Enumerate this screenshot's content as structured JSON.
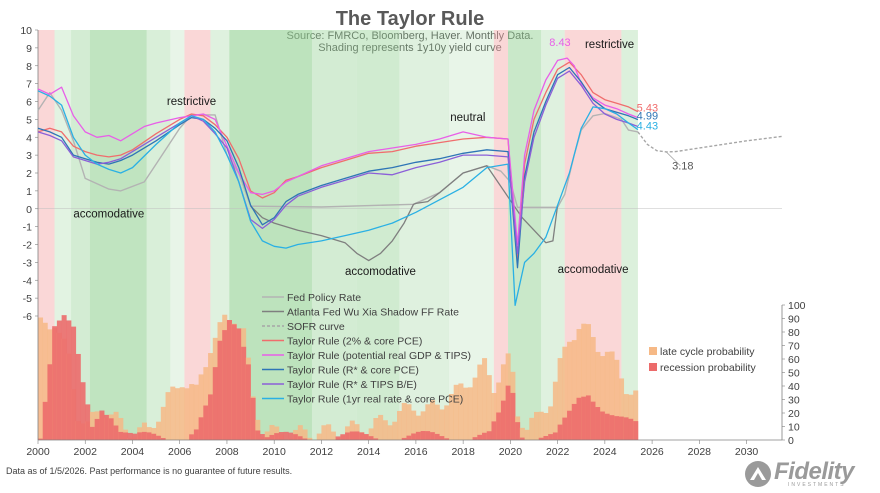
{
  "header": {
    "title": "The Taylor Rule",
    "subtitle_1": "Source: FMRCo, Bloomberg, Haver.  Monthly Data.",
    "subtitle_2": "Shading represents 1y10y yield curve"
  },
  "footer": {
    "note": "Data as of 1/5/2026. Past performance is no guarantee of future results."
  },
  "logo": {
    "text": "Fidelity",
    "sub": "INVESTMENTS"
  },
  "colors": {
    "fed": "#b3b3b3",
    "wuxia": "#7f7f7f",
    "sofr": "#a6a6a6",
    "tr_core": "#f06d6d",
    "tr_gdp": "#e85fe8",
    "tr_rstar": "#2e75b6",
    "tr_tips": "#8b5fd8",
    "tr_real": "#2ab0e4",
    "late_cycle": "#f6b986",
    "recession": "#ec6b6b",
    "green_shade": "#8fcf8f",
    "red_shade": "#f4a6a6"
  },
  "chart_data": {
    "type": "line",
    "x_axis": {
      "ticks": [
        "2000",
        "2002",
        "2004",
        "2006",
        "2008",
        "2010",
        "2012",
        "2014",
        "2016",
        "2018",
        "2020",
        "2022",
        "2024",
        "2026",
        "2028",
        "2030"
      ],
      "range": [
        2000,
        2031.5
      ]
    },
    "y_left": {
      "ticks": [
        "10",
        "9",
        "8",
        "7",
        "6",
        "5",
        "4",
        "3",
        "2",
        "1",
        "0",
        "-1",
        "-2",
        "-3",
        "-4",
        "-5",
        "-6"
      ],
      "range": [
        -6,
        10
      ]
    },
    "y_right": {
      "ticks": [
        "100",
        "90",
        "80",
        "70",
        "60",
        "50",
        "40",
        "30",
        "20",
        "10",
        "0"
      ],
      "range": [
        0,
        100
      ]
    },
    "grid": false,
    "legend_position": "center",
    "series": [
      {
        "name": "Fed Policy Rate",
        "key": "fed",
        "x": [
          2000,
          2000.5,
          2001,
          2001.5,
          2002,
          2003,
          2003.5,
          2004.5,
          2005,
          2006,
          2006.5,
          2007.5,
          2008,
          2008.5,
          2009,
          2012,
          2015.9,
          2017,
          2018,
          2019,
          2019.6,
          2020,
          2020.3,
          2022,
          2022.3,
          2022.7,
          2023,
          2023.5,
          2024,
          2024.7,
          2025,
          2025.4
        ],
        "y": [
          5.5,
          6.5,
          5.5,
          3.8,
          1.7,
          1.1,
          1.0,
          1.5,
          2.5,
          4.5,
          5.25,
          5.25,
          3.0,
          2.0,
          0.15,
          0.1,
          0.25,
          0.9,
          2.0,
          2.4,
          2.1,
          1.5,
          0.08,
          0.08,
          0.8,
          3.0,
          4.4,
          5.2,
          5.33,
          5.0,
          4.4,
          4.3
        ]
      },
      {
        "name": "Atlanta Fed Wu Xia Shadow FF Rate",
        "key": "wuxia",
        "x": [
          2009,
          2009.5,
          2010,
          2011,
          2012,
          2013,
          2013.5,
          2014,
          2014.5,
          2015,
          2015.5,
          2015.9,
          2016,
          2016.5,
          2017,
          2018,
          2019,
          2020.5,
          2021,
          2021.5,
          2021.8,
          2022
        ],
        "y": [
          0.15,
          -0.5,
          -0.8,
          -1.2,
          -1.5,
          -1.9,
          -2.5,
          -2.9,
          -2.5,
          -1.8,
          -0.8,
          0.25,
          0.3,
          0.4,
          0.9,
          2.0,
          2.4,
          -0.5,
          -1.2,
          -1.9,
          -1.8,
          0.2
        ]
      },
      {
        "name": "SOFR curve",
        "key": "sofr",
        "x": [
          2025.4,
          2025.8,
          2026.2,
          2026.6,
          2027,
          2028,
          2029,
          2030,
          2031.5
        ],
        "y": [
          4.3,
          3.6,
          3.25,
          3.18,
          3.2,
          3.4,
          3.6,
          3.8,
          4.05
        ]
      },
      {
        "name": "Taylor Rule (2% & core PCE)",
        "key": "tr_core",
        "x": [
          2000,
          2000.5,
          2001,
          2001.5,
          2002,
          2002.5,
          2003,
          2003.5,
          2004,
          2005,
          2006,
          2006.5,
          2007,
          2007.5,
          2008,
          2008.5,
          2009,
          2009.5,
          2010,
          2010.5,
          2011,
          2012,
          2013,
          2014,
          2015,
          2016,
          2017,
          2018,
          2019,
          2019.9,
          2020.3,
          2020.6,
          2021,
          2021.5,
          2022,
          2022.5,
          2023,
          2023.5,
          2024,
          2024.5,
          2025,
          2025.4
        ],
        "y": [
          4.3,
          4.5,
          4.3,
          3.5,
          3.2,
          3.0,
          2.9,
          3.0,
          3.3,
          4.2,
          5.0,
          5.3,
          5.2,
          4.7,
          4.0,
          2.8,
          1.0,
          0.6,
          0.9,
          1.6,
          1.8,
          2.3,
          2.7,
          3.1,
          3.2,
          3.5,
          3.7,
          3.9,
          4.0,
          3.9,
          -3.0,
          2.5,
          5.0,
          6.5,
          7.8,
          8.2,
          7.5,
          6.5,
          6.1,
          5.9,
          5.7,
          5.43
        ]
      },
      {
        "name": "Taylor Rule (potential real GDP & TIPS)",
        "key": "tr_gdp",
        "x": [
          2000,
          2000.5,
          2001,
          2001.5,
          2002,
          2002.5,
          2003,
          2003.5,
          2004,
          2004.5,
          2005,
          2006,
          2006.5,
          2007,
          2007.5,
          2008,
          2008.5,
          2009,
          2009.5,
          2010,
          2010.5,
          2011,
          2012,
          2013,
          2014,
          2015,
          2016,
          2017,
          2018,
          2019,
          2019.9,
          2020.3,
          2020.6,
          2021,
          2021.5,
          2022,
          2022.4,
          2022.7,
          2023,
          2023.5,
          2024,
          2024.5,
          2025,
          2025.4
        ],
        "y": [
          6.7,
          6.4,
          6.8,
          5.2,
          4.3,
          4.0,
          4.1,
          3.8,
          4.2,
          4.6,
          4.8,
          5.1,
          5.2,
          5.3,
          5.0,
          3.5,
          2.0,
          0.9,
          0.8,
          1.0,
          1.5,
          1.8,
          2.4,
          2.8,
          3.2,
          3.4,
          3.6,
          3.9,
          4.3,
          4.0,
          3.9,
          -2.0,
          3.0,
          5.5,
          7.2,
          8.3,
          8.43,
          8.0,
          7.0,
          6.2,
          5.8,
          5.6,
          5.3,
          5.1
        ]
      },
      {
        "name": "Taylor Rule (R* & core PCE)",
        "key": "tr_rstar",
        "x": [
          2000,
          2000.5,
          2001,
          2001.5,
          2002,
          2002.5,
          2003,
          2003.5,
          2004,
          2005,
          2006,
          2006.5,
          2007,
          2007.5,
          2008,
          2008.5,
          2009,
          2009.5,
          2010,
          2010.5,
          2011,
          2012,
          2013,
          2014,
          2015,
          2016,
          2017,
          2018,
          2019,
          2019.9,
          2020.3,
          2020.6,
          2021,
          2021.5,
          2022,
          2022.5,
          2023,
          2023.5,
          2024,
          2024.5,
          2025,
          2025.4
        ],
        "y": [
          4.5,
          4.3,
          4.0,
          3.0,
          2.8,
          2.6,
          2.5,
          2.7,
          3.0,
          3.8,
          4.7,
          5.1,
          5.0,
          4.5,
          3.8,
          2.3,
          0.2,
          -0.9,
          -0.5,
          0.4,
          0.8,
          1.3,
          1.7,
          2.1,
          2.3,
          2.6,
          2.8,
          3.1,
          3.3,
          3.2,
          -3.3,
          1.8,
          4.3,
          6.0,
          7.5,
          7.9,
          7.1,
          6.1,
          5.6,
          5.4,
          5.2,
          4.99
        ]
      },
      {
        "name": "Taylor Rule (R* & TIPS B/E)",
        "key": "tr_tips",
        "x": [
          2000,
          2000.5,
          2001,
          2001.5,
          2002,
          2002.5,
          2003,
          2003.5,
          2004,
          2005,
          2006,
          2006.5,
          2007,
          2007.5,
          2008,
          2008.5,
          2009,
          2009.5,
          2010,
          2010.5,
          2011,
          2012,
          2013,
          2014,
          2015,
          2016,
          2017,
          2018,
          2019,
          2019.9,
          2020.3,
          2020.6,
          2021,
          2021.5,
          2022,
          2022.5,
          2023,
          2023.5,
          2024,
          2024.5,
          2025,
          2025.4
        ],
        "y": [
          4.3,
          4.1,
          3.8,
          2.9,
          2.7,
          2.5,
          2.6,
          2.8,
          3.2,
          4.0,
          4.8,
          5.2,
          4.9,
          4.2,
          3.4,
          1.5,
          -0.6,
          -1.1,
          -0.6,
          0.2,
          0.7,
          1.2,
          1.6,
          2.0,
          1.9,
          2.3,
          2.6,
          3.0,
          3.0,
          2.9,
          -2.5,
          1.5,
          4.0,
          5.8,
          7.3,
          7.7,
          6.9,
          5.9,
          5.3,
          5.0,
          4.8,
          4.6
        ]
      },
      {
        "name": "Taylor Rule (1yr real rate & core PCE)",
        "key": "tr_real",
        "x": [
          2000,
          2000.5,
          2001,
          2001.5,
          2002,
          2002.5,
          2003,
          2003.5,
          2004,
          2005,
          2006,
          2006.5,
          2007,
          2007.5,
          2008,
          2008.5,
          2009,
          2009.5,
          2010,
          2010.5,
          2011,
          2012,
          2013,
          2014,
          2015,
          2016,
          2017,
          2018,
          2019,
          2019.9,
          2020.2,
          2020.6,
          2021,
          2021.5,
          2022,
          2022.5,
          2023,
          2023.5,
          2024,
          2024.5,
          2025,
          2025.4
        ],
        "y": [
          6.6,
          6.3,
          5.8,
          4.0,
          3.0,
          2.5,
          2.2,
          2.0,
          2.3,
          3.6,
          4.8,
          5.2,
          5.0,
          4.3,
          3.0,
          1.5,
          -0.7,
          -1.8,
          -2.1,
          -2.2,
          -2.0,
          -1.8,
          -1.5,
          -1.2,
          -0.8,
          -0.2,
          0.5,
          1.2,
          2.3,
          2.5,
          -5.4,
          -3.0,
          -2.5,
          -1.6,
          0.2,
          2.0,
          4.5,
          5.7,
          5.6,
          5.3,
          4.8,
          4.43
        ]
      }
    ],
    "annotations": [
      {
        "text": "restrictive",
        "x": 2006.5,
        "y": 5.8
      },
      {
        "text": "accomodative",
        "x": 2003.0,
        "y": -0.5
      },
      {
        "text": "neutral",
        "x": 2018.2,
        "y": 4.9
      },
      {
        "text": "accomodative",
        "x": 2014.5,
        "y": -3.7
      },
      {
        "text": "accomodative",
        "x": 2023.5,
        "y": -3.6
      },
      {
        "text": "restrictive",
        "x": 2024.2,
        "y": 9.0
      },
      {
        "text": "8.43",
        "x": 2022.1,
        "y": 9.1
      },
      {
        "text": "5.43",
        "x": 2025.8,
        "y": 5.43
      },
      {
        "text": "4.99",
        "x": 2025.8,
        "y": 4.99
      },
      {
        "text": "4.43",
        "x": 2025.8,
        "y": 4.43
      },
      {
        "text": "3.18",
        "x": 2027.3,
        "y": 2.2
      }
    ],
    "shading": [
      {
        "from": 2000.0,
        "to": 2000.7,
        "kind": "red"
      },
      {
        "from": 2000.7,
        "to": 2001.4,
        "kind": "green",
        "strength": 0.2
      },
      {
        "from": 2001.4,
        "to": 2002.2,
        "kind": "green",
        "strength": 0.45
      },
      {
        "from": 2002.2,
        "to": 2004.6,
        "kind": "green",
        "strength": 0.75
      },
      {
        "from": 2004.6,
        "to": 2005.6,
        "kind": "green",
        "strength": 0.35
      },
      {
        "from": 2005.6,
        "to": 2006.2,
        "kind": "green",
        "strength": 0.1
      },
      {
        "from": 2006.2,
        "to": 2007.3,
        "kind": "red"
      },
      {
        "from": 2007.3,
        "to": 2008.1,
        "kind": "green",
        "strength": 0.25
      },
      {
        "from": 2008.1,
        "to": 2011.6,
        "kind": "green",
        "strength": 0.8
      },
      {
        "from": 2011.6,
        "to": 2013.5,
        "kind": "green",
        "strength": 0.45
      },
      {
        "from": 2013.5,
        "to": 2015.3,
        "kind": "green",
        "strength": 0.5
      },
      {
        "from": 2015.3,
        "to": 2017.4,
        "kind": "green",
        "strength": 0.25
      },
      {
        "from": 2017.4,
        "to": 2019.3,
        "kind": "green",
        "strength": 0.1
      },
      {
        "from": 2019.3,
        "to": 2019.9,
        "kind": "red"
      },
      {
        "from": 2019.9,
        "to": 2021.3,
        "kind": "green",
        "strength": 0.6
      },
      {
        "from": 2021.3,
        "to": 2022.3,
        "kind": "green",
        "strength": 0.25
      },
      {
        "from": 2022.3,
        "to": 2024.7,
        "kind": "red"
      },
      {
        "from": 2024.7,
        "to": 2025.4,
        "kind": "green",
        "strength": 0.3
      }
    ],
    "probabilities": {
      "x_start": 2000,
      "x_end": 2025.4,
      "step": 0.2,
      "late_cycle_knots": [
        [
          2000,
          85
        ],
        [
          2000.6,
          88
        ],
        [
          2001.2,
          60
        ],
        [
          2001.6,
          20
        ],
        [
          2002.0,
          10
        ],
        [
          2002.6,
          25
        ],
        [
          2003.4,
          12
        ],
        [
          2004.0,
          5
        ],
        [
          2004.6,
          8
        ],
        [
          2005.4,
          30
        ],
        [
          2006.0,
          45
        ],
        [
          2006.6,
          35
        ],
        [
          2007.2,
          70
        ],
        [
          2007.8,
          88
        ],
        [
          2008.2,
          92
        ],
        [
          2008.6,
          80
        ],
        [
          2009.0,
          30
        ],
        [
          2009.4,
          8
        ],
        [
          2010.0,
          5
        ],
        [
          2011.0,
          5
        ],
        [
          2012.0,
          6
        ],
        [
          2013.0,
          8
        ],
        [
          2014.0,
          10
        ],
        [
          2015.0,
          18
        ],
        [
          2015.8,
          25
        ],
        [
          2016.4,
          22
        ],
        [
          2017.0,
          28
        ],
        [
          2017.6,
          35
        ],
        [
          2018.2,
          45
        ],
        [
          2018.8,
          55
        ],
        [
          2019.2,
          40
        ],
        [
          2019.6,
          55
        ],
        [
          2019.9,
          60
        ],
        [
          2020.2,
          20
        ],
        [
          2020.6,
          10
        ],
        [
          2021.0,
          15
        ],
        [
          2021.6,
          30
        ],
        [
          2022.0,
          55
        ],
        [
          2022.4,
          75
        ],
        [
          2022.8,
          85
        ],
        [
          2023.2,
          80
        ],
        [
          2023.6,
          70
        ],
        [
          2024.0,
          65
        ],
        [
          2024.4,
          55
        ],
        [
          2024.8,
          40
        ],
        [
          2025.4,
          30
        ]
      ],
      "recession_knots": [
        [
          2000,
          5
        ],
        [
          2000.3,
          45
        ],
        [
          2000.6,
          85
        ],
        [
          2001.0,
          90
        ],
        [
          2001.4,
          80
        ],
        [
          2001.8,
          40
        ],
        [
          2002.2,
          10
        ],
        [
          2002.6,
          25
        ],
        [
          2003.0,
          20
        ],
        [
          2003.4,
          8
        ],
        [
          2004.0,
          2
        ],
        [
          2006.0,
          2
        ],
        [
          2006.6,
          8
        ],
        [
          2007.2,
          30
        ],
        [
          2007.6,
          70
        ],
        [
          2008.0,
          88
        ],
        [
          2008.4,
          85
        ],
        [
          2008.8,
          60
        ],
        [
          2009.2,
          10
        ],
        [
          2009.6,
          2
        ],
        [
          2019.0,
          3
        ],
        [
          2019.5,
          20
        ],
        [
          2019.9,
          45
        ],
        [
          2020.3,
          5
        ],
        [
          2021.8,
          3
        ],
        [
          2022.3,
          15
        ],
        [
          2022.8,
          30
        ],
        [
          2023.2,
          35
        ],
        [
          2023.8,
          25
        ],
        [
          2024.4,
          18
        ],
        [
          2025.0,
          12
        ],
        [
          2025.4,
          8
        ]
      ]
    },
    "legend": [
      {
        "label": "Fed Policy Rate",
        "key": "fed",
        "style": "line"
      },
      {
        "label": "Atlanta Fed Wu Xia Shadow FF Rate",
        "key": "wuxia",
        "style": "line"
      },
      {
        "label": "SOFR curve",
        "key": "sofr",
        "style": "dash"
      },
      {
        "label": "Taylor Rule (2% & core PCE)",
        "key": "tr_core",
        "style": "line"
      },
      {
        "label": "Taylor Rule (potential real GDP & TIPS)",
        "key": "tr_gdp",
        "style": "line"
      },
      {
        "label": "Taylor Rule (R* & core PCE)",
        "key": "tr_rstar",
        "style": "line"
      },
      {
        "label": "Taylor Rule (R* & TIPS B/E)",
        "key": "tr_tips",
        "style": "line"
      },
      {
        "label": "Taylor Rule (1yr real rate & core PCE)",
        "key": "tr_real",
        "style": "line"
      },
      {
        "label": "late cycle probability",
        "key": "late_cycle",
        "style": "box"
      },
      {
        "label": "recession probability",
        "key": "recession",
        "style": "box"
      }
    ]
  }
}
